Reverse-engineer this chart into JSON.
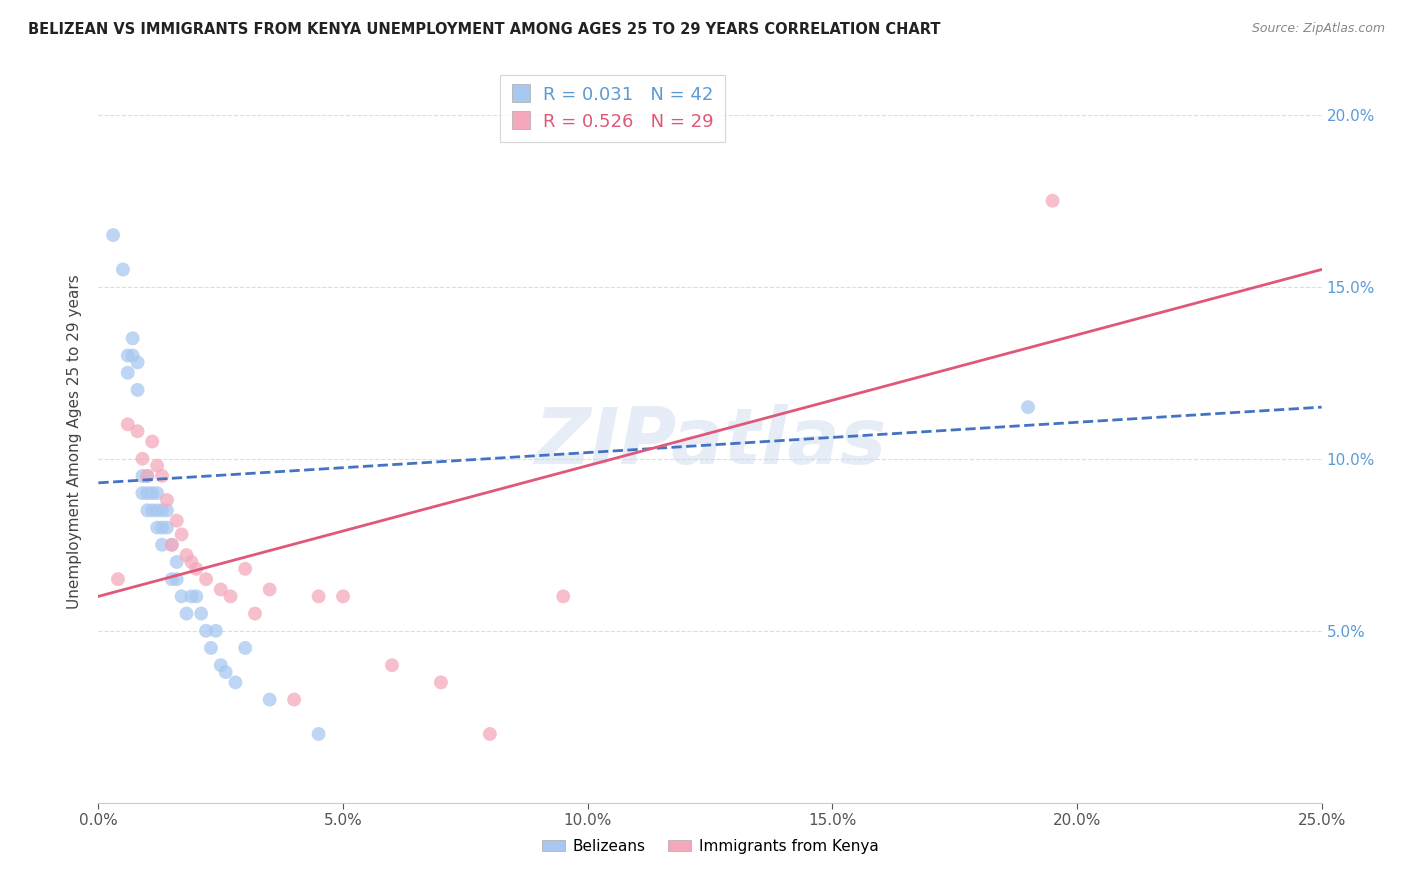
{
  "title": "BELIZEAN VS IMMIGRANTS FROM KENYA UNEMPLOYMENT AMONG AGES 25 TO 29 YEARS CORRELATION CHART",
  "source": "Source: ZipAtlas.com",
  "ylabel": "Unemployment Among Ages 25 to 29 years",
  "xlim": [
    0,
    0.25
  ],
  "ylim": [
    0,
    0.21
  ],
  "x_ticks": [
    0.0,
    0.05,
    0.1,
    0.15,
    0.2,
    0.25
  ],
  "x_tick_labels": [
    "0.0%",
    "5.0%",
    "10.0%",
    "15.0%",
    "20.0%",
    "25.0%"
  ],
  "y_ticks": [
    0.0,
    0.05,
    0.1,
    0.15,
    0.2
  ],
  "y_tick_labels_right": [
    "",
    "5.0%",
    "10.0%",
    "15.0%",
    "20.0%"
  ],
  "watermark": "ZIPatlas",
  "legend_blue_R": "R = 0.031",
  "legend_blue_N": "N = 42",
  "legend_pink_R": "R = 0.526",
  "legend_pink_N": "N = 29",
  "legend_label_blue": "Belizeans",
  "legend_label_pink": "Immigrants from Kenya",
  "blue_color": "#A8C8F0",
  "pink_color": "#F5A8BC",
  "blue_line_color": "#4472C4",
  "pink_line_color": "#E05878",
  "blue_scatter_x": [
    0.003,
    0.005,
    0.006,
    0.006,
    0.007,
    0.007,
    0.008,
    0.008,
    0.009,
    0.009,
    0.01,
    0.01,
    0.01,
    0.011,
    0.011,
    0.012,
    0.012,
    0.012,
    0.013,
    0.013,
    0.013,
    0.014,
    0.014,
    0.015,
    0.015,
    0.016,
    0.016,
    0.017,
    0.018,
    0.019,
    0.02,
    0.021,
    0.022,
    0.023,
    0.024,
    0.025,
    0.026,
    0.028,
    0.03,
    0.035,
    0.045,
    0.19
  ],
  "blue_scatter_y": [
    0.165,
    0.155,
    0.13,
    0.125,
    0.135,
    0.13,
    0.128,
    0.12,
    0.095,
    0.09,
    0.095,
    0.09,
    0.085,
    0.09,
    0.085,
    0.09,
    0.085,
    0.08,
    0.085,
    0.08,
    0.075,
    0.085,
    0.08,
    0.075,
    0.065,
    0.07,
    0.065,
    0.06,
    0.055,
    0.06,
    0.06,
    0.055,
    0.05,
    0.045,
    0.05,
    0.04,
    0.038,
    0.035,
    0.045,
    0.03,
    0.02,
    0.115
  ],
  "pink_scatter_x": [
    0.004,
    0.006,
    0.008,
    0.009,
    0.01,
    0.011,
    0.012,
    0.013,
    0.014,
    0.015,
    0.016,
    0.017,
    0.018,
    0.019,
    0.02,
    0.022,
    0.025,
    0.027,
    0.03,
    0.032,
    0.035,
    0.04,
    0.045,
    0.05,
    0.06,
    0.07,
    0.08,
    0.095,
    0.195
  ],
  "pink_scatter_y": [
    0.065,
    0.11,
    0.108,
    0.1,
    0.095,
    0.105,
    0.098,
    0.095,
    0.088,
    0.075,
    0.082,
    0.078,
    0.072,
    0.07,
    0.068,
    0.065,
    0.062,
    0.06,
    0.068,
    0.055,
    0.062,
    0.03,
    0.06,
    0.06,
    0.04,
    0.035,
    0.02,
    0.06,
    0.175
  ],
  "blue_trend_x0": 0.0,
  "blue_trend_x1": 0.25,
  "blue_trend_y0": 0.093,
  "blue_trend_y1": 0.115,
  "pink_trend_x0": 0.0,
  "pink_trend_x1": 0.25,
  "pink_trend_y0": 0.06,
  "pink_trend_y1": 0.155,
  "background_color": "#FFFFFF",
  "grid_color": "#DDDDDD"
}
